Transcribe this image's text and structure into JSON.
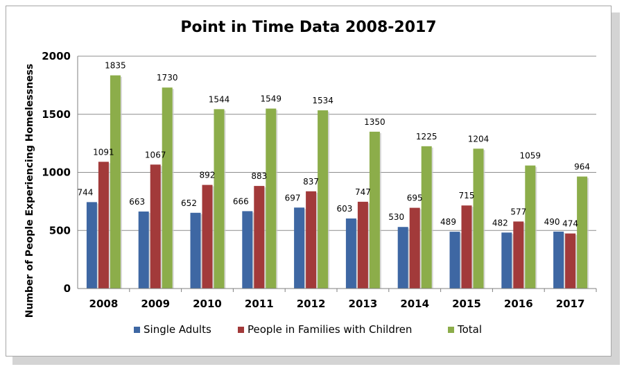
{
  "chart_data": {
    "type": "bar",
    "title": "Point in Time Data 2008-2017",
    "xlabel": "",
    "ylabel": "Number of People Experiencing Homelessness",
    "ylim": [
      0,
      2000
    ],
    "yticks": [
      0,
      500,
      1000,
      1500,
      2000
    ],
    "grid": true,
    "legend_position": "bottom",
    "categories": [
      "2008",
      "2009",
      "2010",
      "2011",
      "2012",
      "2013",
      "2014",
      "2015",
      "2016",
      "2017"
    ],
    "series": [
      {
        "name": "Single Adults",
        "color": "#3e67a3",
        "values": [
          744,
          663,
          652,
          666,
          697,
          603,
          530,
          489,
          482,
          490
        ]
      },
      {
        "name": "People in Families with Children",
        "color": "#a23a3a",
        "values": [
          1091,
          1067,
          892,
          883,
          837,
          747,
          695,
          715,
          577,
          474
        ]
      },
      {
        "name": "Total",
        "color": "#8cad4a",
        "values": [
          1835,
          1730,
          1544,
          1549,
          1534,
          1350,
          1225,
          1204,
          1059,
          964
        ]
      }
    ]
  }
}
